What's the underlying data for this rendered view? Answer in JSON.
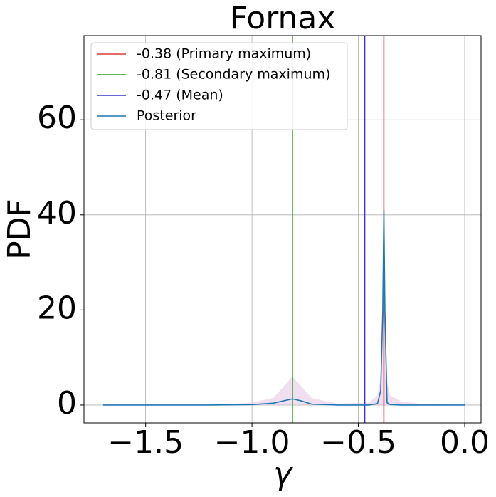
{
  "chart_data": {
    "type": "line",
    "title": "Fornax",
    "xlabel": "γ",
    "ylabel": "PDF",
    "xlim": [
      -1.79,
      0.077
    ],
    "ylim": [
      -3.75,
      77.7
    ],
    "xticks": [
      {
        "value": -1.5,
        "label": "−1.5"
      },
      {
        "value": -1.0,
        "label": "−1.0"
      },
      {
        "value": -0.5,
        "label": "−0.5"
      },
      {
        "value": 0,
        "label": "0.0"
      }
    ],
    "yticks": [
      0,
      20,
      40,
      60
    ],
    "grid": true,
    "legend": "upper left",
    "vlines": [
      {
        "name": "-0.38 (Primary maximum)",
        "color": "#e03a3a",
        "x": -0.38
      },
      {
        "name": "-0.81 (Secondary maximum)",
        "color": "#2ca02c",
        "x": -0.81
      },
      {
        "name": "-0.47 (Mean)",
        "color": "#3333cc",
        "x": -0.47
      }
    ],
    "series": [
      {
        "name": "Posterior",
        "color": "#1f77b4",
        "x": [
          -1.7,
          -1.2,
          -1.0,
          -0.9,
          -0.85,
          -0.81,
          -0.77,
          -0.72,
          -0.6,
          -0.45,
          -0.41,
          -0.395,
          -0.385,
          -0.38,
          -0.375,
          -0.365,
          -0.35,
          -0.3,
          -0.2,
          0.0
        ],
        "values": [
          0,
          0,
          0.1,
          0.4,
          0.9,
          1.3,
          0.9,
          0.2,
          0,
          0,
          0.3,
          3,
          20,
          41,
          20,
          0.5,
          0.1,
          0,
          0,
          0
        ]
      }
    ],
    "band": {
      "color": "#e8c8e8",
      "upper": [
        0,
        0,
        0.5,
        1.5,
        4,
        6,
        4,
        1.5,
        0.3,
        0.5,
        2,
        6,
        20,
        41,
        20,
        5,
        2,
        0.8,
        0.2,
        0
      ]
    }
  }
}
